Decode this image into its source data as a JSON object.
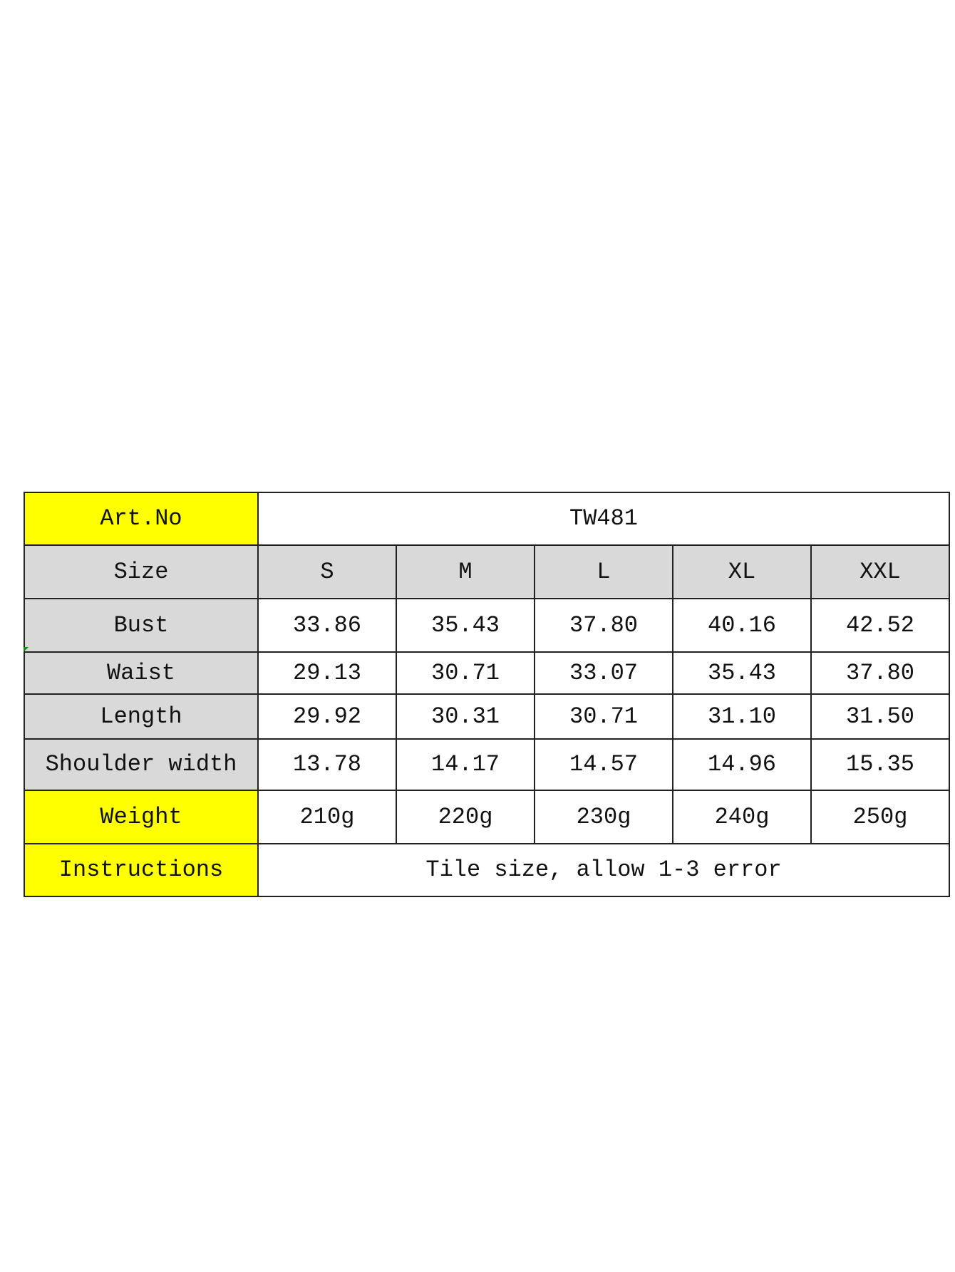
{
  "table": {
    "art_no_label": "Art.No",
    "art_no_value": "TW481",
    "size_label": "Size",
    "sizes": [
      "S",
      "M",
      "L",
      "XL",
      "XXL"
    ],
    "rows": [
      {
        "label": "Bust",
        "values": [
          "33.86",
          "35.43",
          "37.80",
          "40.16",
          "42.52"
        ]
      },
      {
        "label": "Waist",
        "values": [
          "29.13",
          "30.71",
          "33.07",
          "35.43",
          "37.80"
        ]
      },
      {
        "label": "Length",
        "values": [
          "29.92",
          "30.31",
          "30.71",
          "31.10",
          "31.50"
        ]
      },
      {
        "label": "Shoulder width",
        "values": [
          "13.78",
          "14.17",
          "14.57",
          "14.96",
          "15.35"
        ]
      }
    ],
    "weight_label": "Weight",
    "weights": [
      "210g",
      "220g",
      "230g",
      "240g",
      "250g"
    ],
    "instructions_label": "Instructions",
    "instructions_value": "Tile size, allow 1-3 error"
  },
  "colors": {
    "highlight": "#ffff00",
    "header_gray": "#d9d9d9"
  }
}
